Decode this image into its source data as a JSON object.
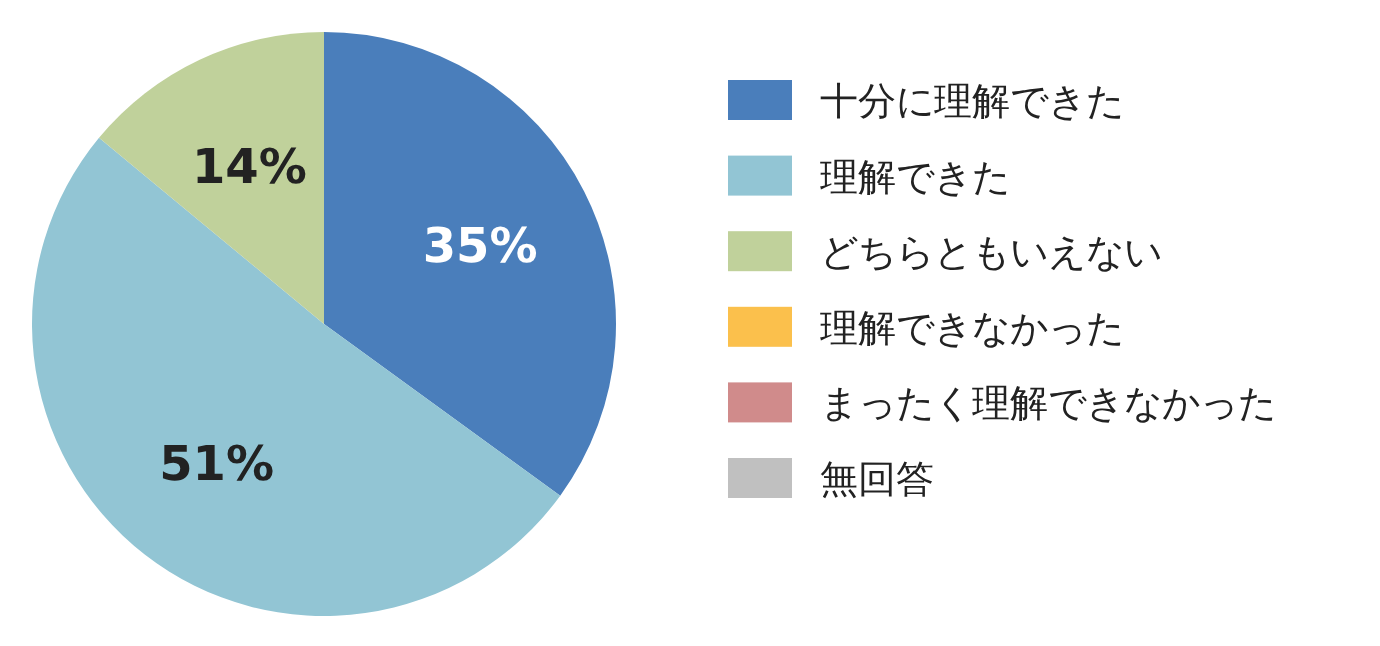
{
  "chart_data": {
    "type": "pie",
    "categories": [
      "十分に理解できた",
      "理解できた",
      "どちらともいえない",
      "理解できなかった",
      "まったく理解できなかった",
      "無回答"
    ],
    "values": [
      35,
      51,
      14,
      0,
      0,
      0
    ],
    "colors": [
      "#4a7ebb",
      "#92c5d4",
      "#c0d19b",
      "#fbc04c",
      "#d08b8b",
      "#c0c0c0"
    ],
    "value_labels": [
      "35%",
      "51%",
      "14%",
      null,
      null,
      null
    ],
    "legend": "right"
  }
}
